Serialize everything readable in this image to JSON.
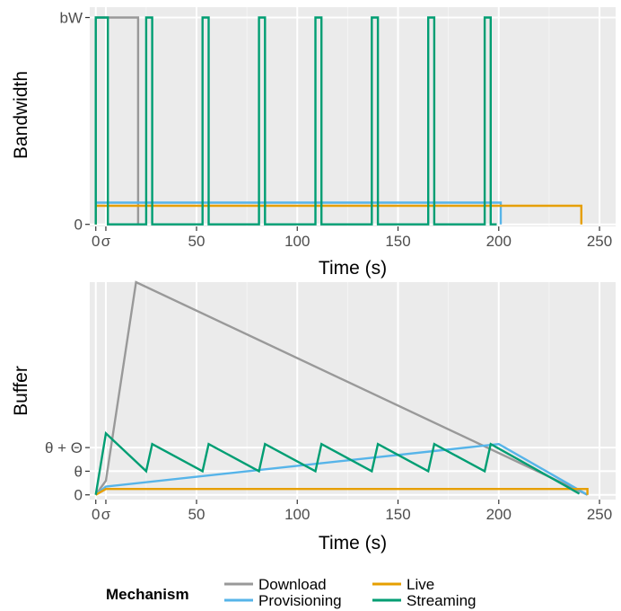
{
  "chart_data": [
    {
      "type": "line",
      "ylabel": "Bandwidth",
      "xlabel": "Time (s)",
      "xlim": [
        -3,
        258
      ],
      "xticks": [
        {
          "value": 0,
          "label": "0"
        },
        {
          "value": 5,
          "label": "σ"
        },
        {
          "value": 50,
          "label": "50"
        },
        {
          "value": 100,
          "label": "100"
        },
        {
          "value": 150,
          "label": "150"
        },
        {
          "value": 200,
          "label": "200"
        },
        {
          "value": 250,
          "label": "250"
        }
      ],
      "yticks": [
        {
          "value": 0,
          "label": "0"
        },
        {
          "value": 1,
          "label": "bW"
        }
      ],
      "ylim": [
        -0.01,
        1.05
      ],
      "grid": true,
      "series": [
        {
          "name": "Download",
          "color": "#999999",
          "points": [
            [
              0,
              0
            ],
            [
              0,
              1
            ],
            [
              21,
              1
            ],
            [
              21,
              0
            ]
          ]
        },
        {
          "name": "Provisioning",
          "color": "#56B4E9",
          "points": [
            [
              0,
              0
            ],
            [
              0,
              0.105
            ],
            [
              201,
              0.105
            ],
            [
              201,
              0
            ]
          ]
        },
        {
          "name": "Live",
          "color": "#E69F00",
          "points": [
            [
              0,
              0
            ],
            [
              0,
              0.09
            ],
            [
              241,
              0.09
            ],
            [
              241,
              0
            ]
          ]
        },
        {
          "name": "Streaming",
          "color": "#009E73",
          "points": [
            [
              0,
              0
            ],
            [
              0,
              1
            ],
            [
              6,
              1
            ],
            [
              6,
              0
            ],
            [
              25,
              0
            ],
            [
              25,
              1
            ],
            [
              28,
              1
            ],
            [
              28,
              0
            ],
            [
              53,
              0
            ],
            [
              53,
              1
            ],
            [
              56,
              1
            ],
            [
              56,
              0
            ],
            [
              81,
              0
            ],
            [
              81,
              1
            ],
            [
              84,
              1
            ],
            [
              84,
              0
            ],
            [
              109,
              0
            ],
            [
              109,
              1
            ],
            [
              112,
              1
            ],
            [
              112,
              0
            ],
            [
              137,
              0
            ],
            [
              137,
              1
            ],
            [
              140,
              1
            ],
            [
              140,
              0
            ],
            [
              165,
              0
            ],
            [
              165,
              1
            ],
            [
              168,
              1
            ],
            [
              168,
              0
            ],
            [
              193,
              0
            ],
            [
              193,
              1
            ],
            [
              196,
              1
            ],
            [
              196,
              0
            ],
            [
              199,
              0
            ]
          ]
        }
      ]
    },
    {
      "type": "line",
      "ylabel": "Buffer",
      "xlabel": "Time (s)",
      "xlim": [
        -3,
        258
      ],
      "xticks": [
        {
          "value": 0,
          "label": "0"
        },
        {
          "value": 5,
          "label": "σ"
        },
        {
          "value": 50,
          "label": "50"
        },
        {
          "value": 100,
          "label": "100"
        },
        {
          "value": 150,
          "label": "150"
        },
        {
          "value": 200,
          "label": "200"
        },
        {
          "value": 250,
          "label": "250"
        }
      ],
      "yticks": [
        {
          "value": 0,
          "label": "0"
        },
        {
          "value": 1,
          "label": "θ"
        },
        {
          "value": 2,
          "label": "θ + Θ"
        }
      ],
      "ylim": [
        -0.2,
        9.0
      ],
      "grid": true,
      "series": [
        {
          "name": "Download",
          "color": "#999999",
          "points": [
            [
              0,
              0
            ],
            [
              5,
              0.6
            ],
            [
              20,
              9.0
            ],
            [
              244,
              0
            ]
          ]
        },
        {
          "name": "Provisioning",
          "color": "#56B4E9",
          "points": [
            [
              0,
              0
            ],
            [
              5,
              0.35
            ],
            [
              200,
              2.15
            ],
            [
              244,
              0
            ]
          ]
        },
        {
          "name": "Live",
          "color": "#E69F00",
          "points": [
            [
              0,
              0
            ],
            [
              5,
              0.25
            ],
            [
              244,
              0.25
            ],
            [
              244,
              0
            ]
          ]
        },
        {
          "name": "Streaming",
          "color": "#009E73",
          "points": [
            [
              0,
              0
            ],
            [
              5,
              2.6
            ],
            [
              25,
              1.0
            ],
            [
              28,
              2.15
            ],
            [
              53,
              1.0
            ],
            [
              56,
              2.15
            ],
            [
              81,
              1.0
            ],
            [
              84,
              2.15
            ],
            [
              109,
              1.0
            ],
            [
              112,
              2.15
            ],
            [
              137,
              1.0
            ],
            [
              140,
              2.15
            ],
            [
              165,
              1.0
            ],
            [
              168,
              2.15
            ],
            [
              193,
              1.0
            ],
            [
              196,
              2.15
            ],
            [
              240,
              0.05
            ]
          ]
        }
      ]
    }
  ],
  "legend": {
    "title": "Mechanism",
    "items": [
      {
        "name": "Download",
        "color": "#999999"
      },
      {
        "name": "Provisioning",
        "color": "#56B4E9"
      },
      {
        "name": "Live",
        "color": "#E69F00"
      },
      {
        "name": "Streaming",
        "color": "#009E73"
      }
    ]
  }
}
